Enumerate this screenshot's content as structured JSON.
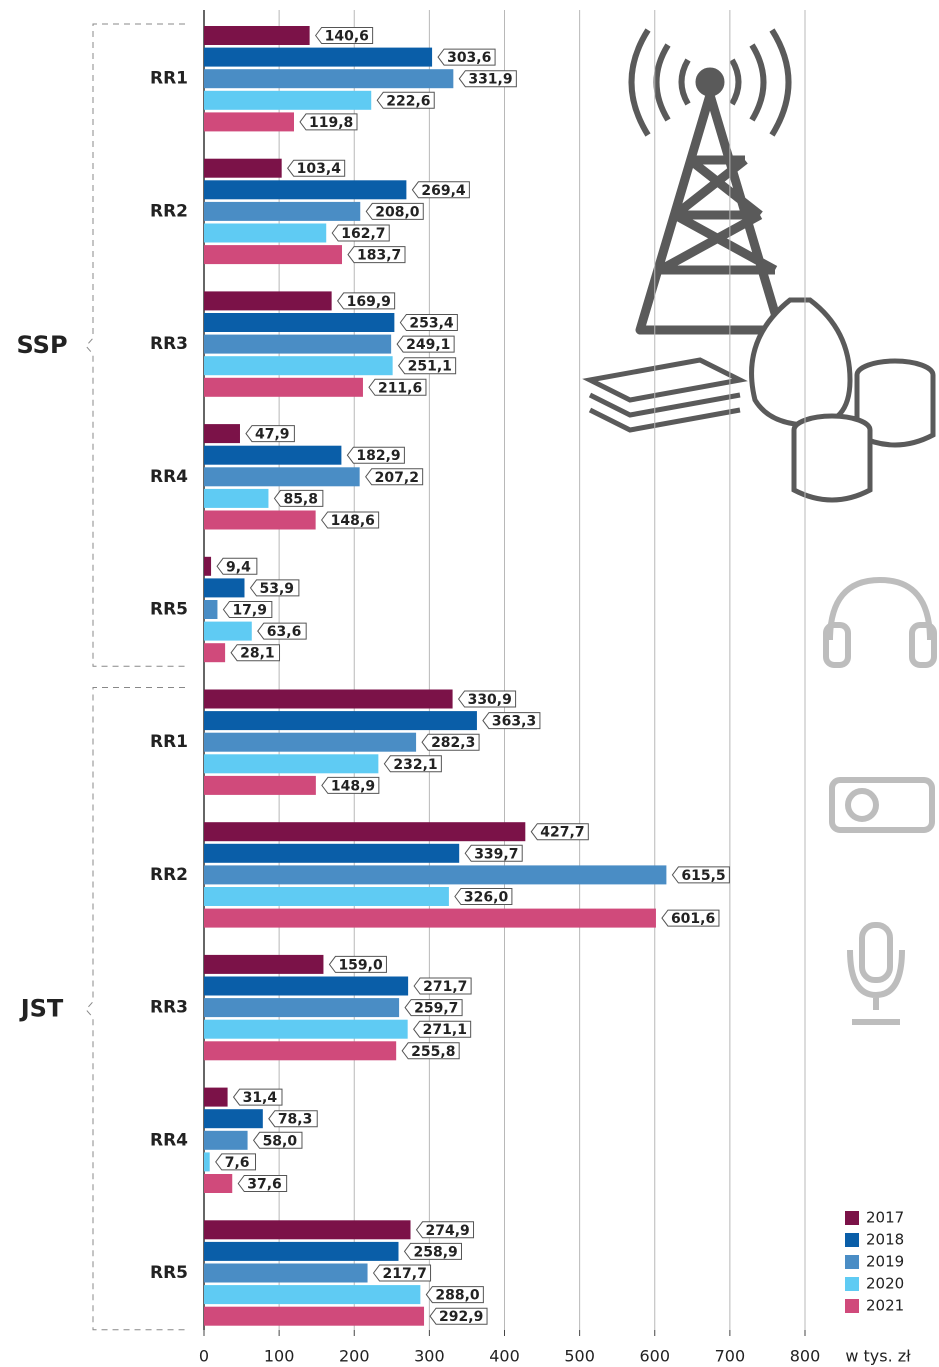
{
  "chart_data": {
    "type": "bar",
    "orientation": "horizontal",
    "groups": [
      "SSP",
      "JST"
    ],
    "categories": [
      "RR1",
      "RR2",
      "RR3",
      "RR4",
      "RR5",
      "RR1",
      "RR2",
      "RR3",
      "RR4",
      "RR5"
    ],
    "category_group": [
      0,
      0,
      0,
      0,
      0,
      1,
      1,
      1,
      1,
      1
    ],
    "series": [
      {
        "name": "2017",
        "color": "#7b1248",
        "values": [
          140.6,
          103.4,
          169.9,
          47.9,
          9.4,
          330.9,
          427.7,
          159.0,
          31.4,
          274.9
        ],
        "value_labels": [
          "140,6",
          "103,4",
          "169,9",
          "47,9",
          "9,4",
          "330,9",
          "427,7",
          "159,0",
          "31,4",
          "274,9"
        ]
      },
      {
        "name": "2018",
        "color": "#0a5ea8",
        "values": [
          303.6,
          269.4,
          253.4,
          182.9,
          53.9,
          363.3,
          339.7,
          271.7,
          78.3,
          258.9
        ],
        "value_labels": [
          "303,6",
          "269,4",
          "253,4",
          "182,9",
          "53,9",
          "363,3",
          "339,7",
          "271,7",
          "78,3",
          "258,9"
        ]
      },
      {
        "name": "2019",
        "color": "#4a8dc5",
        "values": [
          331.9,
          208.0,
          249.1,
          207.2,
          17.9,
          282.3,
          615.5,
          259.7,
          58.0,
          217.7
        ],
        "value_labels": [
          "331,9",
          "208,0",
          "249,1",
          "207,2",
          "17,9",
          "282,3",
          "615,5",
          "259,7",
          "58,0",
          "217,7"
        ]
      },
      {
        "name": "2020",
        "color": "#5fcbf3",
        "values": [
          222.6,
          162.7,
          251.1,
          85.8,
          63.6,
          232.1,
          326.0,
          271.1,
          7.6,
          288.0
        ],
        "value_labels": [
          "222,6",
          "162,7",
          "251,1",
          "85,8",
          "63,6",
          "232,1",
          "326,0",
          "271,1",
          "7,6",
          "288,0"
        ]
      },
      {
        "name": "2021",
        "color": "#d04a7b",
        "values": [
          119.8,
          183.7,
          211.6,
          148.6,
          28.1,
          148.9,
          601.6,
          255.8,
          37.6,
          292.9
        ],
        "value_labels": [
          "119,8",
          "183,7",
          "211,6",
          "148,6",
          "28,1",
          "148,9",
          "601,6",
          "255,8",
          "37,6",
          "292,9"
        ]
      }
    ],
    "xlim": [
      0,
      800
    ],
    "xticks": [
      0,
      100,
      200,
      300,
      400,
      500,
      600,
      700,
      800
    ],
    "x_label": "w tys. zł",
    "grid": true,
    "legend": "lower right"
  }
}
